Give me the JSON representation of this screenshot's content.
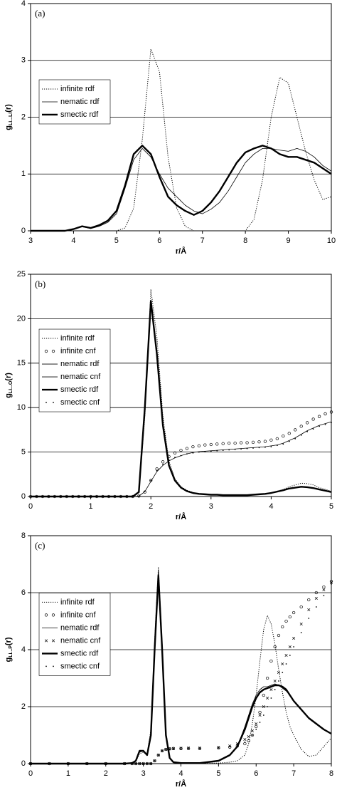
{
  "chart_data": [
    {
      "type": "line",
      "panel_label": "(a)",
      "y_label": "g",
      "y_label_sub": "Li...Li",
      "y_label_suffix": "(r)",
      "x_label": "r/Å",
      "xlim": [
        3,
        10
      ],
      "ylim": [
        0,
        4
      ],
      "xticks": [
        3,
        4,
        5,
        6,
        7,
        8,
        9,
        10
      ],
      "yticks": [
        0,
        1,
        2,
        3,
        4
      ],
      "grid": true,
      "legend": "left",
      "x": [
        3.0,
        3.2,
        3.4,
        3.6,
        3.8,
        4.0,
        4.2,
        4.4,
        4.6,
        4.8,
        5.0,
        5.2,
        5.4,
        5.6,
        5.8,
        6.0,
        6.2,
        6.4,
        6.6,
        6.8,
        7.0,
        7.2,
        7.4,
        7.6,
        7.8,
        8.0,
        8.2,
        8.4,
        8.6,
        8.8,
        9.0,
        9.2,
        9.4,
        9.6,
        9.8,
        10.0
      ],
      "series": [
        {
          "name": "infinite rdf",
          "color": "#000000",
          "style": "dotted",
          "values": [
            0,
            0,
            0,
            0,
            0,
            0,
            0,
            0,
            0,
            0,
            0,
            0.05,
            0.4,
            1.6,
            3.2,
            2.8,
            1.3,
            0.4,
            0.08,
            0,
            0,
            0,
            0,
            0,
            0,
            0,
            0.2,
            0.9,
            2.0,
            2.7,
            2.6,
            2.0,
            1.4,
            0.9,
            0.55,
            0.6
          ]
        },
        {
          "name": "nematic rdf",
          "color": "#000000",
          "style": "thin",
          "values": [
            0,
            0,
            0,
            0,
            0,
            0.03,
            0.07,
            0.04,
            0.08,
            0.15,
            0.3,
            0.75,
            1.25,
            1.45,
            1.3,
            1.0,
            0.75,
            0.6,
            0.45,
            0.35,
            0.3,
            0.38,
            0.5,
            0.7,
            0.95,
            1.2,
            1.35,
            1.45,
            1.45,
            1.42,
            1.4,
            1.45,
            1.4,
            1.3,
            1.15,
            1.05
          ]
        },
        {
          "name": "smectic rdf",
          "color": "#000000",
          "style": "thick",
          "values": [
            0,
            0,
            0,
            0,
            0,
            0.03,
            0.08,
            0.05,
            0.1,
            0.18,
            0.35,
            0.8,
            1.35,
            1.5,
            1.35,
            0.95,
            0.6,
            0.45,
            0.35,
            0.28,
            0.35,
            0.5,
            0.7,
            0.95,
            1.2,
            1.38,
            1.45,
            1.5,
            1.45,
            1.35,
            1.3,
            1.3,
            1.25,
            1.2,
            1.1,
            1.0
          ]
        }
      ]
    },
    {
      "type": "line",
      "panel_label": "(b)",
      "y_label": "g",
      "y_label_sub": "Li...O",
      "y_label_suffix": "(r)",
      "x_label": "r/Å",
      "xlim": [
        0,
        5
      ],
      "ylim": [
        0,
        25
      ],
      "xticks": [
        0,
        1,
        2,
        3,
        4,
        5
      ],
      "yticks": [
        0,
        5,
        10,
        15,
        20,
        25
      ],
      "grid": true,
      "legend": "left",
      "x": [
        0,
        0.1,
        0.2,
        0.3,
        0.4,
        0.5,
        0.6,
        0.7,
        0.8,
        0.9,
        1.0,
        1.1,
        1.2,
        1.3,
        1.4,
        1.5,
        1.6,
        1.7,
        1.8,
        1.9,
        2.0,
        2.1,
        2.2,
        2.3,
        2.4,
        2.5,
        2.6,
        2.7,
        2.8,
        2.9,
        3.0,
        3.1,
        3.2,
        3.3,
        3.4,
        3.5,
        3.6,
        3.7,
        3.8,
        3.9,
        4.0,
        4.1,
        4.2,
        4.3,
        4.4,
        4.5,
        4.6,
        4.7,
        4.8,
        4.9,
        5.0
      ],
      "series": [
        {
          "name": "infinite rdf",
          "color": "#000000",
          "style": "dotted",
          "values": [
            0,
            0,
            0,
            0,
            0,
            0,
            0,
            0,
            0,
            0,
            0,
            0,
            0,
            0,
            0,
            0,
            0,
            0,
            0.5,
            9,
            23.3,
            18,
            9,
            4,
            2,
            1.1,
            0.7,
            0.45,
            0.3,
            0.25,
            0.2,
            0.2,
            0.15,
            0.15,
            0.15,
            0.15,
            0.15,
            0.2,
            0.25,
            0.3,
            0.4,
            0.6,
            0.8,
            1.1,
            1.3,
            1.5,
            1.45,
            1.3,
            1.0,
            0.8,
            0.6
          ]
        },
        {
          "name": "infinite cnf",
          "color": "#000000",
          "style": "circle",
          "values": [
            0,
            0,
            0,
            0,
            0,
            0,
            0,
            0,
            0,
            0,
            0,
            0,
            0,
            0,
            0,
            0,
            0,
            0,
            0.05,
            0.5,
            1.8,
            3.1,
            3.9,
            4.5,
            4.9,
            5.2,
            5.4,
            5.6,
            5.7,
            5.8,
            5.85,
            5.9,
            5.95,
            6.0,
            6.0,
            6.05,
            6.05,
            6.1,
            6.15,
            6.2,
            6.35,
            6.5,
            6.8,
            7.1,
            7.5,
            7.9,
            8.3,
            8.7,
            9.0,
            9.3,
            9.5
          ]
        },
        {
          "name": "nematic rdf",
          "color": "#000000",
          "style": "thin",
          "values": [
            0,
            0,
            0,
            0,
            0,
            0,
            0,
            0,
            0,
            0,
            0,
            0,
            0,
            0,
            0,
            0,
            0,
            0,
            0.5,
            9.5,
            21.5,
            16.5,
            8,
            3.5,
            1.8,
            1.0,
            0.6,
            0.4,
            0.3,
            0.25,
            0.2,
            0.2,
            0.15,
            0.15,
            0.15,
            0.15,
            0.15,
            0.2,
            0.25,
            0.3,
            0.4,
            0.55,
            0.7,
            0.9,
            1.0,
            1.1,
            1.05,
            0.95,
            0.8,
            0.65,
            0.5
          ]
        },
        {
          "name": "nematic cnf",
          "color": "#000000",
          "style": "thin",
          "values": [
            0,
            0,
            0,
            0,
            0,
            0,
            0,
            0,
            0,
            0,
            0,
            0,
            0,
            0,
            0,
            0,
            0,
            0,
            0.05,
            0.55,
            1.7,
            2.8,
            3.5,
            4.0,
            4.35,
            4.6,
            4.8,
            4.95,
            5.05,
            5.1,
            5.15,
            5.2,
            5.25,
            5.3,
            5.35,
            5.4,
            5.45,
            5.5,
            5.55,
            5.6,
            5.7,
            5.8,
            6.0,
            6.3,
            6.6,
            7.0,
            7.4,
            7.7,
            8.0,
            8.2,
            8.4
          ]
        },
        {
          "name": "smectic rdf",
          "color": "#000000",
          "style": "thick",
          "values": [
            0,
            0,
            0,
            0,
            0,
            0,
            0,
            0,
            0,
            0,
            0,
            0,
            0,
            0,
            0,
            0,
            0,
            0,
            0.5,
            10,
            22,
            16,
            8,
            3.5,
            1.8,
            1.0,
            0.6,
            0.4,
            0.3,
            0.25,
            0.2,
            0.2,
            0.15,
            0.15,
            0.15,
            0.15,
            0.15,
            0.2,
            0.25,
            0.3,
            0.4,
            0.55,
            0.7,
            0.9,
            1.0,
            1.1,
            1.05,
            0.95,
            0.8,
            0.65,
            0.5
          ]
        },
        {
          "name": "smectic cnf",
          "color": "#000000",
          "style": "dot",
          "values": [
            0,
            0,
            0,
            0,
            0,
            0,
            0,
            0,
            0,
            0,
            0,
            0,
            0,
            0,
            0,
            0,
            0,
            0,
            0.05,
            0.6,
            1.8,
            2.9,
            3.6,
            4.1,
            4.4,
            4.6,
            4.8,
            4.9,
            5.0,
            5.05,
            5.1,
            5.15,
            5.2,
            5.25,
            5.3,
            5.35,
            5.4,
            5.45,
            5.5,
            5.55,
            5.6,
            5.75,
            5.9,
            6.2,
            6.5,
            6.9,
            7.3,
            7.6,
            7.9,
            8.1,
            8.3
          ]
        }
      ]
    },
    {
      "type": "line",
      "panel_label": "(c)",
      "y_label": "g",
      "y_label_sub": "Li...P",
      "y_label_suffix": "(r)",
      "x_label": "r/Å",
      "xlim": [
        0,
        8
      ],
      "ylim": [
        0,
        8
      ],
      "xticks": [
        0,
        1,
        2,
        3,
        4,
        5,
        6,
        7,
        8
      ],
      "yticks": [
        0,
        2,
        4,
        6,
        8
      ],
      "grid": true,
      "legend": "left",
      "x": [
        0,
        0.5,
        1,
        1.5,
        2,
        2.5,
        2.7,
        2.8,
        2.9,
        3.0,
        3.1,
        3.2,
        3.3,
        3.4,
        3.5,
        3.6,
        3.7,
        3.8,
        4.0,
        4.2,
        4.5,
        5.0,
        5.3,
        5.5,
        5.7,
        5.8,
        5.9,
        6.0,
        6.1,
        6.2,
        6.3,
        6.4,
        6.5,
        6.6,
        6.7,
        6.8,
        6.9,
        7.0,
        7.2,
        7.4,
        7.6,
        7.8,
        8.0
      ],
      "series": [
        {
          "name": "infinite rdf",
          "color": "#000000",
          "style": "dotted",
          "values": [
            0,
            0,
            0,
            0,
            0,
            0,
            0.02,
            0.08,
            0.35,
            0.4,
            0.3,
            1.2,
            4.3,
            6.9,
            4.2,
            1.1,
            0.2,
            0.05,
            0.02,
            0.02,
            0.02,
            0.02,
            0.05,
            0.1,
            0.3,
            0.7,
            1.4,
            2.4,
            3.6,
            4.7,
            5.2,
            4.9,
            4.2,
            3.3,
            2.5,
            1.8,
            1.3,
            1.0,
            0.5,
            0.25,
            0.3,
            0.6,
            0.9
          ]
        },
        {
          "name": "infinite cnf",
          "color": "#000000",
          "style": "circle",
          "values": [
            0,
            0,
            0,
            0,
            0,
            0,
            0,
            0,
            0,
            0,
            0,
            0,
            0.1,
            0.3,
            0.45,
            0.5,
            0.52,
            0.53,
            0.53,
            0.53,
            0.53,
            0.55,
            0.58,
            0.62,
            0.7,
            0.8,
            1.0,
            1.3,
            1.8,
            2.4,
            3.0,
            3.6,
            4.1,
            4.5,
            4.8,
            5.0,
            5.15,
            5.3,
            5.5,
            5.75,
            6.0,
            6.2,
            6.4
          ]
        },
        {
          "name": "nematic rdf",
          "color": "#000000",
          "style": "thin",
          "values": [
            0,
            0,
            0,
            0,
            0,
            0,
            0.02,
            0.1,
            0.4,
            0.45,
            0.3,
            1.1,
            4.2,
            6.8,
            4.1,
            1.0,
            0.2,
            0.05,
            0.02,
            0.02,
            0.02,
            0.1,
            0.3,
            0.6,
            1.3,
            1.7,
            2.1,
            2.4,
            2.6,
            2.7,
            2.7,
            2.75,
            2.8,
            2.75,
            2.65,
            2.55,
            2.4,
            2.2,
            1.9,
            1.6,
            1.4,
            1.2,
            1.05
          ]
        },
        {
          "name": "nematic cnf",
          "color": "#000000",
          "style": "cross",
          "values": [
            0,
            0,
            0,
            0,
            0,
            0,
            0,
            0,
            0,
            0,
            0,
            0,
            0.1,
            0.3,
            0.45,
            0.5,
            0.52,
            0.53,
            0.54,
            0.55,
            0.55,
            0.57,
            0.62,
            0.7,
            0.85,
            0.95,
            1.15,
            1.4,
            1.7,
            2.0,
            2.3,
            2.6,
            2.9,
            3.2,
            3.5,
            3.8,
            4.1,
            4.4,
            4.9,
            5.4,
            5.8,
            6.1,
            6.35
          ]
        },
        {
          "name": "smectic rdf",
          "color": "#000000",
          "style": "thick",
          "values": [
            0,
            0,
            0,
            0,
            0,
            0,
            0.02,
            0.1,
            0.45,
            0.45,
            0.3,
            1.0,
            4.0,
            6.6,
            4.0,
            1.0,
            0.2,
            0.05,
            0.02,
            0.02,
            0.02,
            0.1,
            0.3,
            0.6,
            1.2,
            1.6,
            2.0,
            2.3,
            2.5,
            2.6,
            2.65,
            2.7,
            2.75,
            2.75,
            2.7,
            2.6,
            2.4,
            2.2,
            1.9,
            1.6,
            1.4,
            1.2,
            1.05
          ]
        },
        {
          "name": "smectic cnf",
          "color": "#000000",
          "style": "dot",
          "values": [
            0,
            0,
            0,
            0,
            0,
            0,
            0,
            0,
            0,
            0,
            0,
            0,
            0.1,
            0.3,
            0.45,
            0.5,
            0.5,
            0.52,
            0.52,
            0.53,
            0.53,
            0.55,
            0.6,
            0.65,
            0.75,
            0.85,
            1.0,
            1.2,
            1.45,
            1.7,
            2.0,
            2.3,
            2.6,
            2.9,
            3.2,
            3.5,
            3.8,
            4.1,
            4.6,
            5.1,
            5.5,
            5.9,
            6.3
          ]
        }
      ]
    }
  ]
}
